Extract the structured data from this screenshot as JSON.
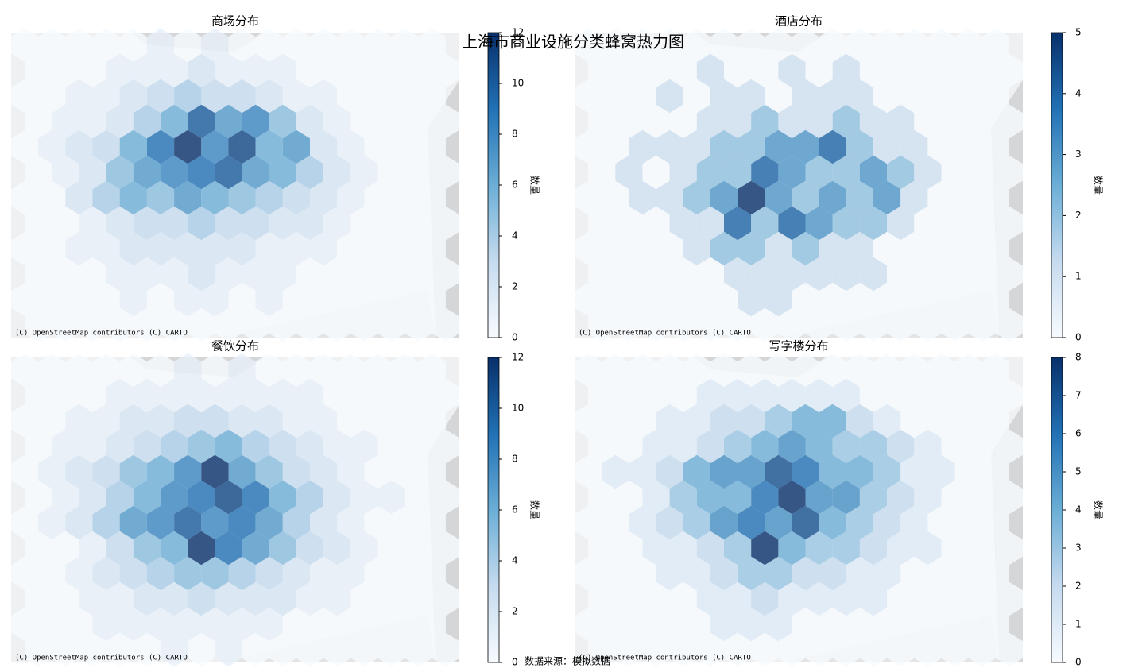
{
  "title": "上海市商业设施分类蜂窝热力图",
  "source": "数据来源：模拟数据",
  "chart_data": [
    {
      "type": "hexbin",
      "title": "商场分布",
      "attribution": "(C) OpenStreetMap contributors (C) CARTO",
      "colorbar_label": "数量",
      "cmap": "Blues",
      "clim": [
        0,
        12
      ],
      "cticks": [
        0,
        2,
        4,
        6,
        8,
        10,
        12
      ],
      "values": [
        [
          0,
          0,
          0,
          0,
          0,
          1,
          0,
          1,
          0,
          0,
          0,
          0,
          0,
          0,
          0,
          0
        ],
        [
          0,
          0,
          0,
          1,
          1,
          1,
          2,
          1,
          1,
          1,
          0,
          0,
          0,
          0,
          0,
          0
        ],
        [
          0,
          0,
          1,
          1,
          2,
          3,
          4,
          3,
          3,
          2,
          1,
          1,
          0,
          0,
          0,
          0
        ],
        [
          0,
          1,
          1,
          2,
          4,
          6,
          10,
          7,
          8,
          5,
          2,
          1,
          0,
          0,
          0,
          0
        ],
        [
          0,
          1,
          2,
          3,
          6,
          9,
          12,
          8,
          11,
          6,
          7,
          2,
          1,
          0,
          0,
          0
        ],
        [
          0,
          1,
          2,
          5,
          7,
          8,
          9,
          10,
          7,
          6,
          4,
          2,
          1,
          0,
          0,
          0
        ],
        [
          0,
          0,
          2,
          4,
          6,
          5,
          7,
          6,
          5,
          4,
          3,
          2,
          1,
          0,
          0,
          0
        ],
        [
          0,
          0,
          1,
          2,
          3,
          3,
          4,
          3,
          3,
          2,
          2,
          1,
          0,
          0,
          0,
          0
        ],
        [
          0,
          0,
          1,
          1,
          2,
          2,
          2,
          2,
          2,
          1,
          1,
          1,
          0,
          0,
          0,
          0
        ],
        [
          0,
          0,
          0,
          1,
          1,
          1,
          2,
          1,
          1,
          1,
          0,
          0,
          0,
          0,
          0,
          0
        ],
        [
          0,
          0,
          0,
          0,
          1,
          0,
          1,
          1,
          0,
          1,
          0,
          0,
          0,
          0,
          0,
          0
        ],
        [
          0,
          0,
          0,
          0,
          0,
          0,
          0,
          0,
          0,
          0,
          0,
          0,
          0,
          0,
          0,
          0
        ]
      ]
    },
    {
      "type": "hexbin",
      "title": "酒店分布",
      "attribution": "(C) OpenStreetMap contributors (C) CARTO",
      "colorbar_label": "数量",
      "cmap": "Blues",
      "clim": [
        0,
        5
      ],
      "cticks": [
        0,
        1,
        2,
        3,
        4,
        5
      ],
      "values": [
        [
          0,
          0,
          0,
          0,
          0,
          0,
          0,
          0,
          0,
          0,
          0,
          0,
          0,
          0,
          0,
          0
        ],
        [
          0,
          0,
          0,
          0,
          1,
          0,
          0,
          1,
          0,
          1,
          0,
          0,
          0,
          0,
          0,
          0
        ],
        [
          0,
          0,
          0,
          1,
          0,
          1,
          1,
          0,
          1,
          1,
          1,
          0,
          0,
          0,
          0,
          0
        ],
        [
          0,
          0,
          0,
          0,
          1,
          1,
          2,
          1,
          1,
          2,
          1,
          1,
          0,
          0,
          0,
          0
        ],
        [
          0,
          0,
          1,
          1,
          1,
          2,
          2,
          3,
          3,
          4,
          2,
          1,
          1,
          0,
          0,
          0
        ],
        [
          0,
          1,
          0,
          1,
          2,
          2,
          4,
          3,
          2,
          2,
          3,
          2,
          1,
          0,
          0,
          0
        ],
        [
          0,
          0,
          1,
          1,
          2,
          3,
          5,
          3,
          2,
          3,
          2,
          3,
          1,
          0,
          0,
          0
        ],
        [
          0,
          0,
          0,
          1,
          1,
          4,
          2,
          4,
          3,
          2,
          2,
          1,
          0,
          0,
          0,
          0
        ],
        [
          0,
          0,
          0,
          0,
          1,
          2,
          2,
          1,
          2,
          1,
          1,
          0,
          0,
          0,
          0,
          0
        ],
        [
          0,
          0,
          0,
          0,
          0,
          1,
          1,
          1,
          1,
          1,
          1,
          0,
          0,
          0,
          0,
          0
        ],
        [
          0,
          0,
          0,
          0,
          0,
          0,
          1,
          1,
          0,
          0,
          0,
          0,
          0,
          0,
          0,
          0
        ],
        [
          0,
          0,
          0,
          0,
          0,
          0,
          0,
          0,
          0,
          0,
          0,
          0,
          0,
          0,
          0,
          0
        ]
      ]
    },
    {
      "type": "hexbin",
      "title": "餐饮分布",
      "attribution": "(C) OpenStreetMap contributors (C) CARTO",
      "colorbar_label": "数量",
      "cmap": "Blues",
      "clim": [
        0,
        12
      ],
      "cticks": [
        0,
        2,
        4,
        6,
        8,
        10,
        12
      ],
      "values": [
        [
          0,
          0,
          0,
          0,
          0,
          0,
          1,
          0,
          1,
          0,
          0,
          0,
          0,
          0,
          0,
          0
        ],
        [
          0,
          0,
          0,
          1,
          1,
          1,
          1,
          1,
          1,
          1,
          1,
          0,
          0,
          0,
          0,
          0
        ],
        [
          0,
          0,
          1,
          1,
          2,
          2,
          3,
          3,
          2,
          2,
          1,
          1,
          0,
          0,
          0,
          0
        ],
        [
          0,
          1,
          1,
          2,
          3,
          4,
          5,
          6,
          4,
          3,
          2,
          1,
          1,
          0,
          0,
          0
        ],
        [
          0,
          1,
          2,
          3,
          5,
          6,
          8,
          12,
          7,
          5,
          3,
          2,
          1,
          0,
          0,
          0
        ],
        [
          0,
          1,
          2,
          4,
          6,
          8,
          9,
          11,
          9,
          6,
          4,
          2,
          1,
          1,
          0,
          0
        ],
        [
          0,
          1,
          2,
          4,
          7,
          8,
          10,
          8,
          9,
          7,
          4,
          2,
          1,
          0,
          0,
          0
        ],
        [
          0,
          0,
          1,
          3,
          5,
          6,
          12,
          9,
          7,
          5,
          3,
          2,
          1,
          0,
          0,
          0
        ],
        [
          0,
          0,
          1,
          2,
          3,
          4,
          5,
          5,
          4,
          3,
          2,
          1,
          1,
          0,
          0,
          0
        ],
        [
          0,
          0,
          1,
          1,
          2,
          2,
          3,
          2,
          2,
          2,
          1,
          1,
          0,
          0,
          0,
          0
        ],
        [
          0,
          0,
          0,
          1,
          1,
          1,
          1,
          1,
          1,
          1,
          0,
          0,
          0,
          0,
          0,
          0
        ],
        [
          0,
          0,
          0,
          0,
          0,
          1,
          0,
          1,
          0,
          0,
          0,
          0,
          0,
          0,
          0,
          0
        ]
      ]
    },
    {
      "type": "hexbin",
      "title": "写字楼分布",
      "attribution": "(C) OpenStreetMap contributors (C) CARTO",
      "colorbar_label": "数量",
      "cmap": "Blues",
      "clim": [
        0,
        8
      ],
      "cticks": [
        0,
        1,
        2,
        3,
        4,
        5,
        6,
        7,
        8
      ],
      "values": [
        [
          0,
          0,
          0,
          0,
          0,
          0,
          0,
          0,
          0,
          0,
          0,
          0,
          0,
          0,
          0,
          0
        ],
        [
          0,
          0,
          0,
          0,
          1,
          1,
          1,
          1,
          1,
          1,
          0,
          0,
          0,
          0,
          0,
          0
        ],
        [
          0,
          0,
          0,
          1,
          1,
          2,
          2,
          3,
          4,
          4,
          2,
          1,
          0,
          0,
          0,
          0
        ],
        [
          0,
          0,
          1,
          1,
          2,
          3,
          4,
          5,
          4,
          3,
          3,
          2,
          1,
          0,
          0,
          0
        ],
        [
          0,
          1,
          1,
          2,
          4,
          5,
          5,
          7,
          6,
          4,
          4,
          3,
          1,
          1,
          0,
          0
        ],
        [
          0,
          0,
          1,
          3,
          4,
          4,
          6,
          8,
          5,
          5,
          3,
          2,
          1,
          0,
          0,
          0
        ],
        [
          0,
          0,
          1,
          2,
          3,
          5,
          6,
          5,
          7,
          4,
          3,
          2,
          1,
          0,
          0,
          0
        ],
        [
          0,
          0,
          1,
          1,
          2,
          3,
          8,
          4,
          3,
          3,
          2,
          1,
          1,
          0,
          0,
          0
        ],
        [
          0,
          0,
          0,
          1,
          1,
          2,
          3,
          3,
          2,
          2,
          1,
          1,
          0,
          0,
          0,
          0
        ],
        [
          0,
          0,
          0,
          0,
          1,
          1,
          2,
          1,
          1,
          1,
          1,
          0,
          0,
          0,
          0,
          0
        ],
        [
          0,
          0,
          0,
          0,
          0,
          1,
          1,
          1,
          0,
          0,
          0,
          0,
          0,
          0,
          0,
          0
        ],
        [
          0,
          0,
          0,
          0,
          0,
          0,
          0,
          0,
          0,
          0,
          0,
          0,
          0,
          0,
          0,
          0
        ]
      ]
    }
  ]
}
